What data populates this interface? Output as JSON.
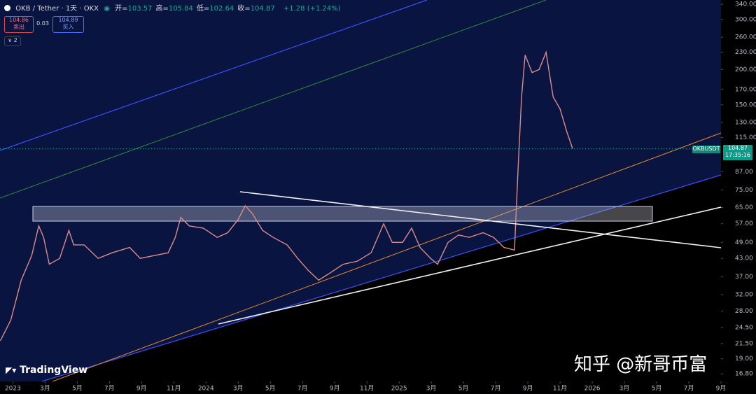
{
  "header": {
    "symbol": "OKB / Tether · 1天 · OKX",
    "ohlc": [
      {
        "label": "开=",
        "value": 103.57
      },
      {
        "label": "高=",
        "value": 105.84
      },
      {
        "label": "低=",
        "value": 102.64
      },
      {
        "label": "收=",
        "value": 104.87
      }
    ],
    "change": "+1.28 (+1.24%)",
    "sell": {
      "price": 104.86,
      "label": "卖出"
    },
    "spread": 0.03,
    "buy": {
      "price": 104.89,
      "label": "买入"
    },
    "layers": 2,
    "tag": "OKBUSDT",
    "countdown": "17:35:16"
  },
  "watermark": {
    "brand": "TradingView",
    "author": "知乎 @新哥币富"
  },
  "chart_data": {
    "type": "line",
    "log_scale": true,
    "color": "#d98c8c",
    "last_price": 104.87,
    "x": [
      -0.78,
      -0.13,
      0.52,
      1.17,
      1.61,
      1.91,
      2.26,
      2.91,
      3.48,
      3.78,
      4.43,
      5.3,
      6.17,
      7.26,
      7.91,
      8.78,
      9.65,
      10.09,
      10.43,
      10.96,
      11.83,
      12.7,
      13.35,
      14.0,
      14.43,
      14.87,
      15.52,
      16.17,
      17.04,
      17.7,
      18.35,
      19.0,
      19.65,
      20.52,
      21.39,
      22.26,
      23.04,
      23.57,
      24.22,
      24.78,
      25.3,
      25.96,
      26.39,
      27.04,
      27.7,
      28.35,
      29.22,
      29.87,
      30.52,
      31.17,
      31.39,
      31.61,
      31.83,
      32.26,
      32.7,
      33.13,
      33.57,
      34.0,
      34.43,
      34.78
    ],
    "values": [
      22,
      26,
      36,
      44,
      56,
      51,
      41,
      43,
      54,
      48,
      48,
      43,
      45,
      47,
      43,
      44,
      45,
      51,
      60,
      56,
      55,
      51,
      53,
      59,
      66,
      62,
      54,
      51,
      48,
      43,
      39,
      36,
      38,
      41,
      42,
      45,
      57,
      49,
      49,
      55,
      47,
      43,
      41,
      49,
      52,
      51,
      53,
      51,
      47,
      46,
      89,
      160,
      225,
      195,
      200,
      230,
      160,
      145,
      120,
      105
    ],
    "xlim": [
      -0.8,
      44
    ],
    "xticks": [
      {
        "value": 0,
        "label": "2023"
      },
      {
        "value": 2,
        "label": "3月"
      },
      {
        "value": 4,
        "label": "5月"
      },
      {
        "value": 6,
        "label": "7月"
      },
      {
        "value": 8,
        "label": "9月"
      },
      {
        "value": 10,
        "label": "11月"
      },
      {
        "value": 12,
        "label": "2024"
      },
      {
        "value": 14,
        "label": "3月"
      },
      {
        "value": 16,
        "label": "5月"
      },
      {
        "value": 18,
        "label": "7月"
      },
      {
        "value": 20,
        "label": "9月"
      },
      {
        "value": 22,
        "label": "11月"
      },
      {
        "value": 24,
        "label": "2025"
      },
      {
        "value": 26,
        "label": "3月"
      },
      {
        "value": 28,
        "label": "5月"
      },
      {
        "value": 30,
        "label": "7月"
      },
      {
        "value": 32,
        "label": "9月"
      },
      {
        "value": 34,
        "label": "11月"
      },
      {
        "value": 36,
        "label": "2026"
      },
      {
        "value": 38,
        "label": "3月"
      },
      {
        "value": 40,
        "label": "5月"
      },
      {
        "value": 42,
        "label": "7月"
      },
      {
        "value": 44,
        "label": "9月"
      }
    ],
    "ylim": [
      15.8,
      352
    ],
    "yticks": [
      {
        "value": 340,
        "label": "340.00"
      },
      {
        "value": 300,
        "label": "300.00"
      },
      {
        "value": 260,
        "label": "260.00"
      },
      {
        "value": 230,
        "label": "230.00"
      },
      {
        "value": 200,
        "label": "200.00"
      },
      {
        "value": 170,
        "label": "170.00"
      },
      {
        "value": 150,
        "label": "150.00"
      },
      {
        "value": 130,
        "label": "130.00"
      },
      {
        "value": 115,
        "label": "115.00"
      },
      {
        "value": 87,
        "label": "87.00"
      },
      {
        "value": 75,
        "label": "75.00"
      },
      {
        "value": 65,
        "label": "65.00"
      },
      {
        "value": 57,
        "label": "57.00"
      },
      {
        "value": 49,
        "label": "49.00"
      },
      {
        "value": 43,
        "label": "43.00"
      },
      {
        "value": 37,
        "label": "37.00"
      },
      {
        "value": 32,
        "label": "32.00"
      },
      {
        "value": 28,
        "label": "28.00"
      },
      {
        "value": 24.5,
        "label": "24.50"
      },
      {
        "value": 21.5,
        "label": "21.50"
      },
      {
        "value": 19,
        "label": "19.00"
      },
      {
        "value": 16.8,
        "label": "16.80"
      }
    ]
  }
}
